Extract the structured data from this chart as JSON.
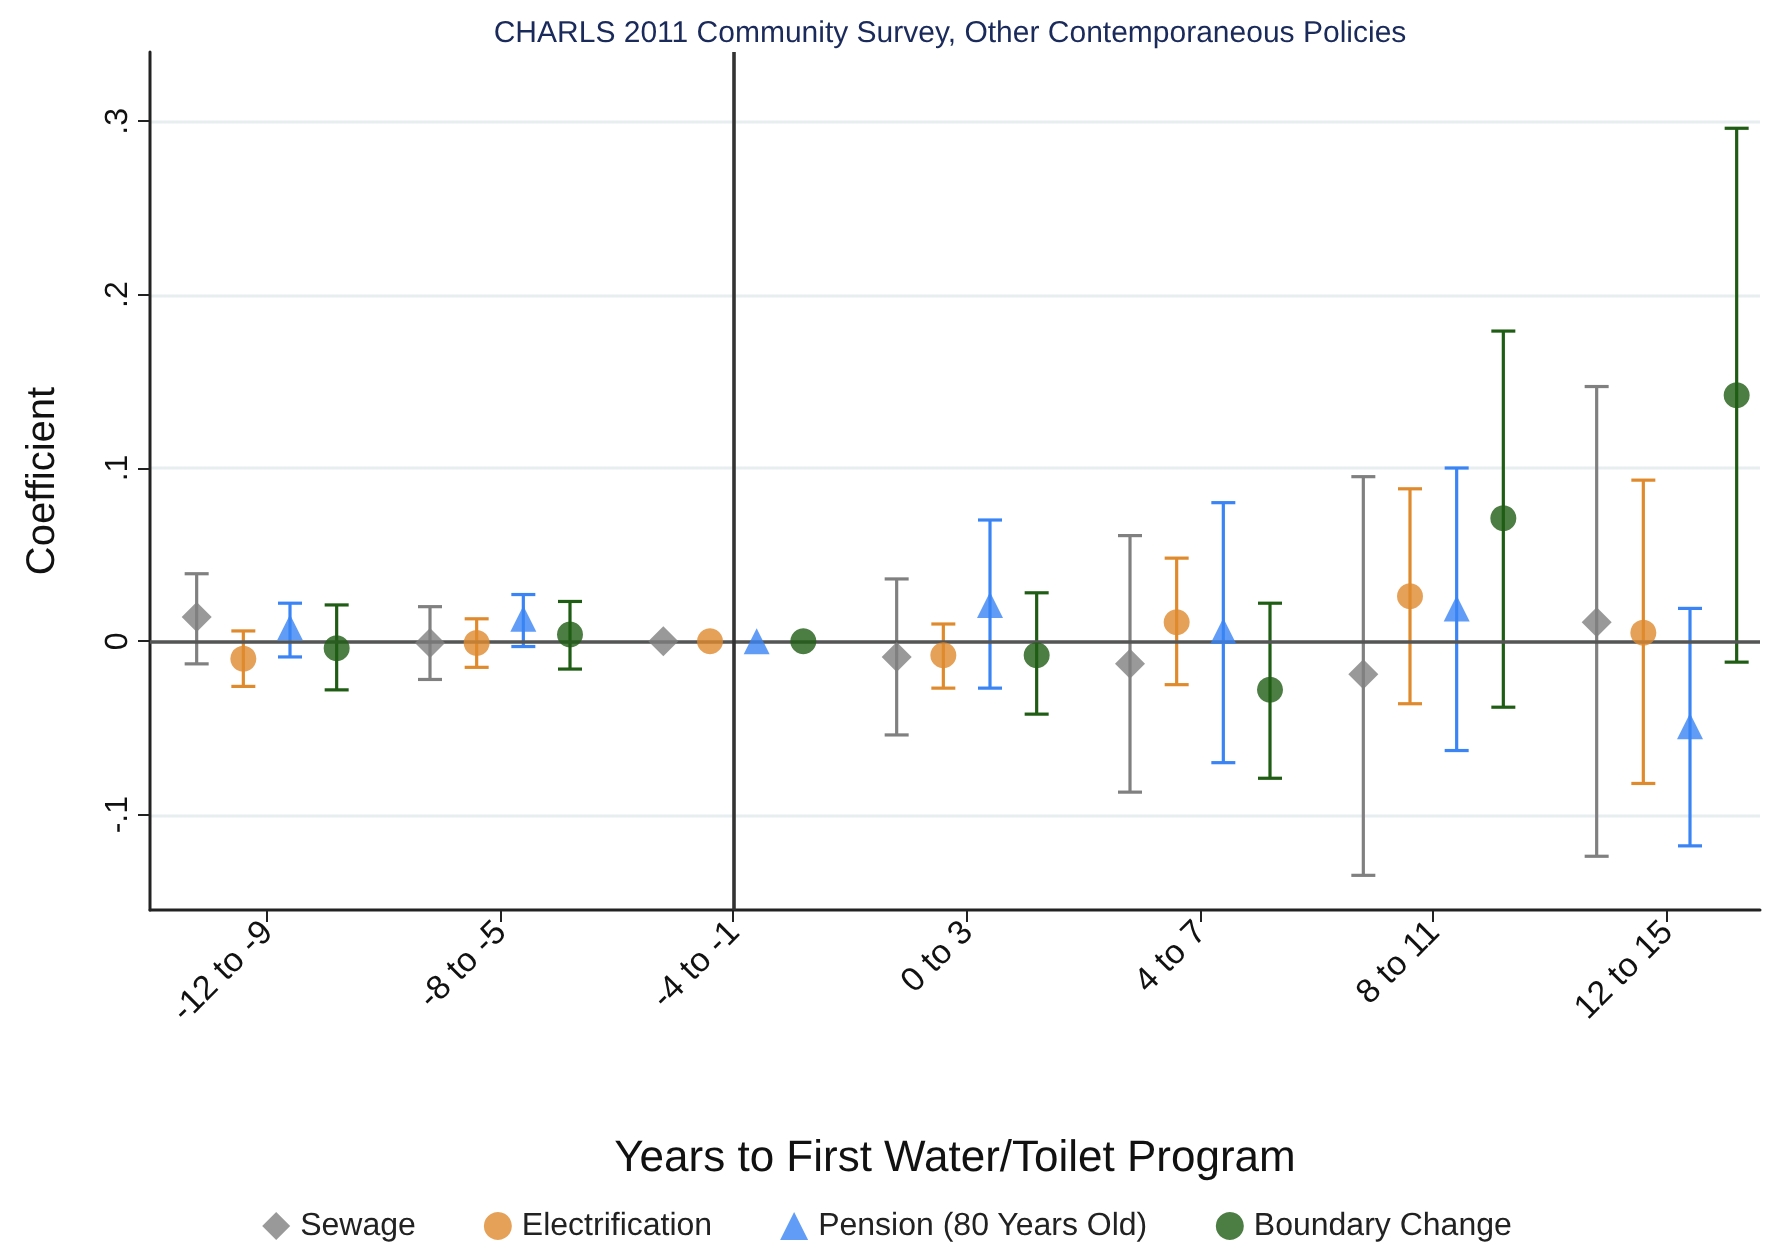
{
  "chart_data": {
    "type": "scatter",
    "title": "CHARLS 2011 Community Survey, Other Contemporaneous Policies",
    "xlabel": "Years to First Water/Toilet Program",
    "ylabel": "Coefficient",
    "categories": [
      "-12 to -9",
      "-8 to -5",
      "-4 to -1",
      "0 to 3",
      "4 to 7",
      "8 to 11",
      "12 to 15"
    ],
    "series": [
      {
        "name": "Sewage",
        "color": "#808080",
        "marker": "diamond",
        "values": [
          0.014,
          -0.001,
          0,
          -0.009,
          -0.013,
          -0.019,
          0.011
        ],
        "errors": [
          [
            -0.013,
            0.039
          ],
          [
            -0.022,
            0.02
          ],
          null,
          [
            -0.054,
            0.036
          ],
          [
            -0.087,
            0.061
          ],
          [
            -0.135,
            0.095
          ],
          [
            -0.124,
            0.147
          ]
        ]
      },
      {
        "name": "Electrification",
        "color": "#e08a2e",
        "marker": "circle",
        "values": [
          -0.01,
          -0.001,
          0,
          -0.008,
          0.011,
          0.026,
          0.005
        ],
        "errors": [
          [
            -0.026,
            0.006
          ],
          [
            -0.015,
            0.013
          ],
          null,
          [
            -0.027,
            0.01
          ],
          [
            -0.025,
            0.048
          ],
          [
            -0.036,
            0.088
          ],
          [
            -0.082,
            0.093
          ]
        ]
      },
      {
        "name": "Pension (80 Years Old)",
        "color": "#3a84f5",
        "marker": "triangle",
        "values": [
          0.008,
          0.013,
          0,
          0.021,
          0.006,
          0.019,
          -0.049
        ],
        "errors": [
          [
            -0.009,
            0.022
          ],
          [
            -0.003,
            0.027
          ],
          null,
          [
            -0.027,
            0.07
          ],
          [
            -0.07,
            0.08
          ],
          [
            -0.063,
            0.1
          ],
          [
            -0.118,
            0.019
          ]
        ]
      },
      {
        "name": "Boundary Change",
        "color": "#1f5c14",
        "marker": "circle",
        "values": [
          -0.004,
          0.004,
          0,
          -0.008,
          -0.028,
          0.071,
          0.142
        ],
        "errors": [
          [
            -0.028,
            0.021
          ],
          [
            -0.016,
            0.023
          ],
          null,
          [
            -0.042,
            0.028
          ],
          [
            -0.079,
            0.022
          ],
          [
            -0.038,
            0.179
          ],
          [
            -0.012,
            0.296
          ]
        ]
      }
    ],
    "ylim": [
      -0.155,
      0.34
    ],
    "yticks": [
      {
        "value": -0.1,
        "label": "-.1"
      },
      0,
      {
        "value": 0.1,
        "label": ".1"
      },
      {
        "value": 0.2,
        "label": ".2"
      },
      {
        "value": 0.3,
        "label": ".3"
      }
    ],
    "ref_lines": [
      {
        "axis": "y",
        "value": 0,
        "color": "#555555"
      },
      {
        "axis": "x",
        "value": "-4 to -1",
        "color": "#333333"
      }
    ],
    "grid": "y",
    "legend": "bottom"
  }
}
